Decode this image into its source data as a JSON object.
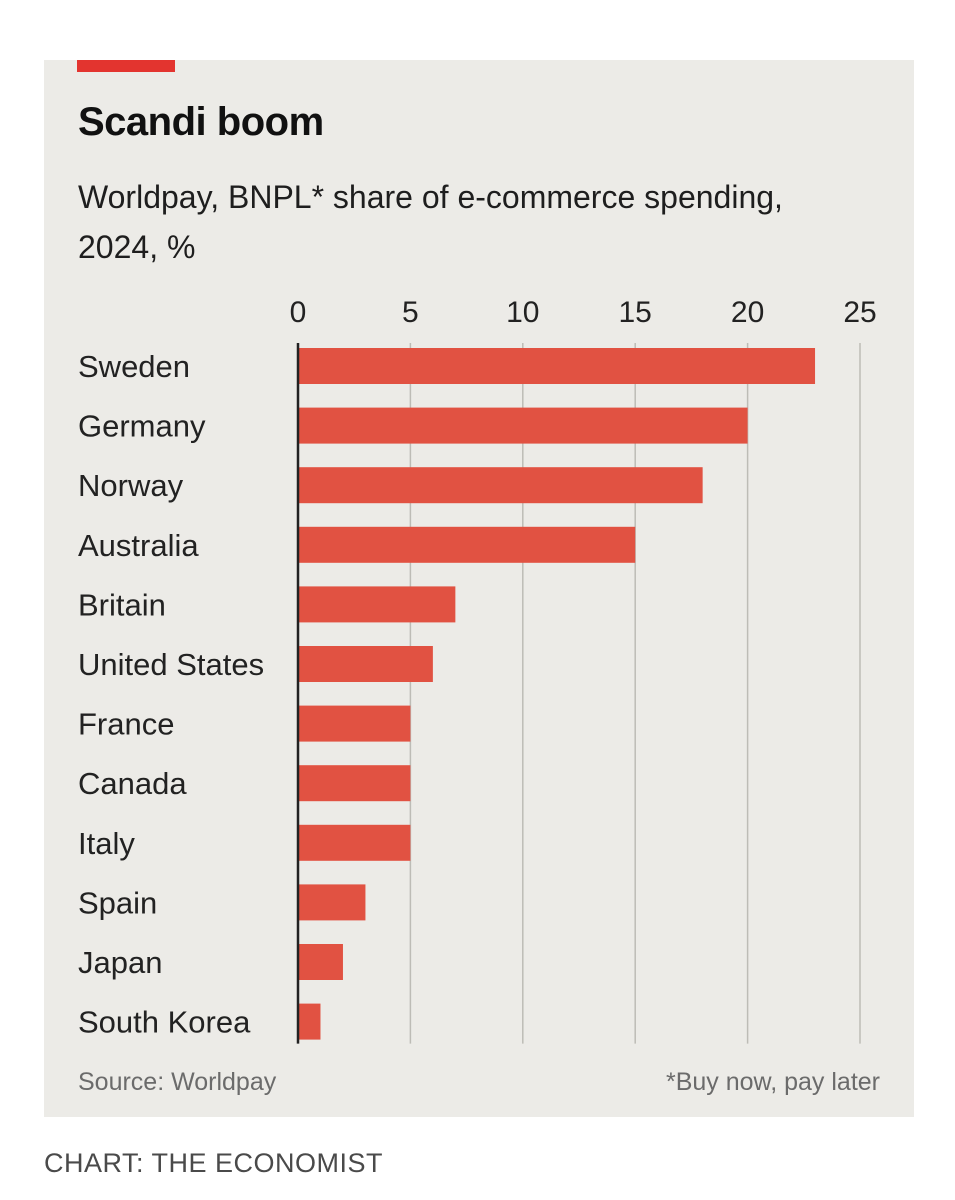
{
  "chart_data": {
    "type": "bar",
    "orientation": "horizontal",
    "title": "Scandi boom",
    "subtitle": "Worldpay, BNPL* share of e-commerce spending, 2024, %",
    "categories": [
      "Sweden",
      "Germany",
      "Norway",
      "Australia",
      "Britain",
      "United States",
      "France",
      "Canada",
      "Italy",
      "Spain",
      "Japan",
      "South Korea"
    ],
    "values": [
      23,
      20,
      18,
      15,
      7,
      6,
      5,
      5,
      5,
      3,
      2,
      1
    ],
    "xlim": [
      0,
      25
    ],
    "xticks": [
      "0",
      "5",
      "10",
      "15",
      "20",
      "25"
    ],
    "xtick_values": [
      0,
      5,
      10,
      15,
      20,
      25
    ],
    "xlabel": "",
    "ylabel": "",
    "grid": "vertical",
    "source": "Source: Worldpay",
    "footnote": "*Buy now, pay later",
    "colors": {
      "bar": "#e15242",
      "background": "#ecebe7",
      "accent": "#e3342f"
    }
  },
  "credit": "CHART: THE ECONOMIST"
}
